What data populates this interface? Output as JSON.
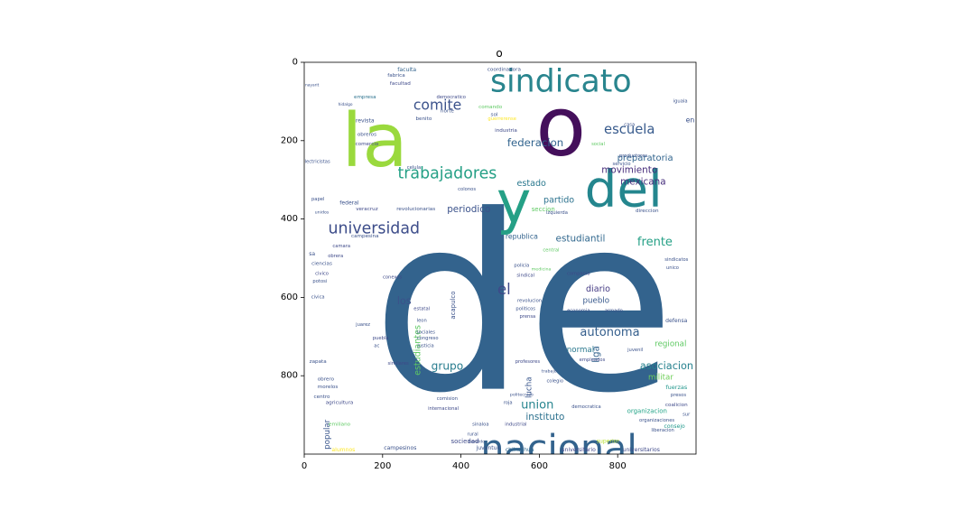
{
  "chart_data": {
    "type": "wordcloud",
    "title": "o",
    "xlabel": "",
    "ylabel": "",
    "xlim": [
      0,
      1000
    ],
    "ylim": [
      1000,
      0
    ],
    "x_ticks": [
      0,
      200,
      400,
      600,
      800
    ],
    "y_ticks": [
      0,
      200,
      400,
      600,
      800
    ],
    "grid": false,
    "words": [
      {
        "text": "de",
        "x": 560,
        "y": 620,
        "size": 620,
        "color": "#33638d"
      },
      {
        "text": "la",
        "x": 180,
        "y": 200,
        "size": 190,
        "color": "#9ad93d"
      },
      {
        "text": "o",
        "x": 655,
        "y": 165,
        "size": 210,
        "color": "#440f5b"
      },
      {
        "text": "sindicato",
        "x": 655,
        "y": 50,
        "size": 80,
        "color": "#29858e"
      },
      {
        "text": "del",
        "x": 815,
        "y": 325,
        "size": 130,
        "color": "#24868e"
      },
      {
        "text": "y",
        "x": 535,
        "y": 360,
        "size": 150,
        "color": "#25a086"
      },
      {
        "text": "nacional",
        "x": 650,
        "y": 985,
        "size": 95,
        "color": "#33638d"
      },
      {
        "text": "trabajadores",
        "x": 365,
        "y": 285,
        "size": 40,
        "color": "#25a086"
      },
      {
        "text": "universidad",
        "x": 178,
        "y": 425,
        "size": 40,
        "color": "#3d4d8a"
      },
      {
        "text": "comite",
        "x": 340,
        "y": 110,
        "size": 36,
        "color": "#3b528b"
      },
      {
        "text": "escuela",
        "x": 830,
        "y": 172,
        "size": 34,
        "color": "#375a8c"
      },
      {
        "text": "federacion",
        "x": 590,
        "y": 205,
        "size": 27,
        "color": "#32648e"
      },
      {
        "text": "preparatoria",
        "x": 870,
        "y": 245,
        "size": 23,
        "color": "#32658e"
      },
      {
        "text": "movimiento",
        "x": 830,
        "y": 275,
        "size": 24,
        "color": "#472d7b"
      },
      {
        "text": "mexicana",
        "x": 865,
        "y": 305,
        "size": 24,
        "color": "#472f7d"
      },
      {
        "text": "estado",
        "x": 580,
        "y": 310,
        "size": 22,
        "color": "#2a788e"
      },
      {
        "text": "partido",
        "x": 650,
        "y": 352,
        "size": 22,
        "color": "#2c728e"
      },
      {
        "text": "periodico",
        "x": 420,
        "y": 375,
        "size": 24,
        "color": "#3b528b"
      },
      {
        "text": "estudiantil",
        "x": 705,
        "y": 450,
        "size": 24,
        "color": "#31688e"
      },
      {
        "text": "frente",
        "x": 895,
        "y": 460,
        "size": 30,
        "color": "#25a086"
      },
      {
        "text": "el",
        "x": 510,
        "y": 580,
        "size": 38,
        "color": "#3e4989"
      },
      {
        "text": "autonoma",
        "x": 780,
        "y": 690,
        "size": 30,
        "color": "#355f8d"
      },
      {
        "text": "asociacion",
        "x": 925,
        "y": 775,
        "size": 26,
        "color": "#26818e"
      },
      {
        "text": "union",
        "x": 595,
        "y": 875,
        "size": 30,
        "color": "#25848e"
      },
      {
        "text": "grupo",
        "x": 365,
        "y": 775,
        "size": 28,
        "color": "#287c8e"
      },
      {
        "text": "instituto",
        "x": 615,
        "y": 905,
        "size": 24,
        "color": "#2c718e"
      },
      {
        "text": "los",
        "x": 255,
        "y": 610,
        "size": 26,
        "color": "#3b528b"
      },
      {
        "text": "diario",
        "x": 750,
        "y": 580,
        "size": 22,
        "color": "#443a83"
      },
      {
        "text": "pueblo",
        "x": 745,
        "y": 610,
        "size": 20,
        "color": "#38598c"
      },
      {
        "text": "normal",
        "x": 705,
        "y": 735,
        "size": 20,
        "color": "#2a788e"
      },
      {
        "text": "regional",
        "x": 935,
        "y": 720,
        "size": 20,
        "color": "#5ec962"
      },
      {
        "text": "militar",
        "x": 910,
        "y": 805,
        "size": 20,
        "color": "#6ece58"
      },
      {
        "text": "fuerzas",
        "x": 950,
        "y": 830,
        "size": 15,
        "color": "#1f968b"
      },
      {
        "text": "republica",
        "x": 555,
        "y": 445,
        "size": 18,
        "color": "#33638d"
      },
      {
        "text": "seccion",
        "x": 610,
        "y": 375,
        "size": 16,
        "color": "#5ec962"
      },
      {
        "text": "en",
        "x": 985,
        "y": 148,
        "size": 18,
        "color": "#3b528b"
      },
      {
        "text": "sociedad",
        "x": 410,
        "y": 968,
        "size": 16,
        "color": "#3e4989"
      },
      {
        "text": "organizacion",
        "x": 875,
        "y": 890,
        "size": 16,
        "color": "#20a386"
      },
      {
        "text": "consejo",
        "x": 945,
        "y": 930,
        "size": 14,
        "color": "#1f988b"
      },
      {
        "text": "juventud",
        "x": 470,
        "y": 985,
        "size": 14,
        "color": "#3b528b"
      },
      {
        "text": "chihuahua",
        "x": 550,
        "y": 990,
        "size": 14,
        "color": "#31688e"
      },
      {
        "text": "universitario",
        "x": 700,
        "y": 990,
        "size": 14,
        "color": "#404688"
      },
      {
        "text": "universitarios",
        "x": 860,
        "y": 990,
        "size": 14,
        "color": "#3e4989"
      },
      {
        "text": "campesinos",
        "x": 245,
        "y": 985,
        "size": 14,
        "color": "#3b528b"
      },
      {
        "text": "alumnos",
        "x": 100,
        "y": 990,
        "size": 14,
        "color": "#fde725"
      },
      {
        "text": "superior",
        "x": 775,
        "y": 968,
        "size": 14,
        "color": "#b5de2b"
      },
      {
        "text": "estudiantes",
        "x": 290,
        "y": 735,
        "size": 22,
        "color": "#5ec962",
        "rotate": -90
      },
      {
        "text": "popular",
        "x": 60,
        "y": 950,
        "size": 20,
        "color": "#39568c",
        "rotate": -90
      },
      {
        "text": "liga",
        "x": 745,
        "y": 745,
        "size": 24,
        "color": "#33638d",
        "rotate": -90
      },
      {
        "text": "lucha",
        "x": 575,
        "y": 830,
        "size": 20,
        "color": "#39568c",
        "rotate": -90
      },
      {
        "text": "acapulco",
        "x": 380,
        "y": 620,
        "size": 16,
        "color": "#3b528b",
        "rotate": -90
      },
      {
        "text": "faculta",
        "x": 262,
        "y": 20,
        "size": 14,
        "color": "#33638d"
      },
      {
        "text": "coordinadora",
        "x": 510,
        "y": 20,
        "size": 13,
        "color": "#3b528b"
      },
      {
        "text": "fabrica",
        "x": 235,
        "y": 35,
        "size": 13,
        "color": "#3b528b"
      },
      {
        "text": "facultad",
        "x": 245,
        "y": 55,
        "size": 13,
        "color": "#3e4989"
      },
      {
        "text": "empresa",
        "x": 155,
        "y": 90,
        "size": 13,
        "color": "#2c728e"
      },
      {
        "text": "democratico",
        "x": 375,
        "y": 90,
        "size": 12,
        "color": "#3e4989"
      },
      {
        "text": "revista",
        "x": 155,
        "y": 150,
        "size": 14,
        "color": "#3b528b"
      },
      {
        "text": "benito",
        "x": 305,
        "y": 145,
        "size": 13,
        "color": "#3b528b"
      },
      {
        "text": "obreros",
        "x": 160,
        "y": 185,
        "size": 13,
        "color": "#3b528b"
      },
      {
        "text": "comercio",
        "x": 160,
        "y": 210,
        "size": 13,
        "color": "#3e4989"
      },
      {
        "text": "electricistas",
        "x": 30,
        "y": 255,
        "size": 12,
        "color": "#3b528b"
      },
      {
        "text": "federal",
        "x": 115,
        "y": 360,
        "size": 14,
        "color": "#3b528b"
      },
      {
        "text": "papel",
        "x": 35,
        "y": 350,
        "size": 12,
        "color": "#3b528b"
      },
      {
        "text": "unidos",
        "x": 45,
        "y": 385,
        "size": 11,
        "color": "#3b528b"
      },
      {
        "text": "veracruz",
        "x": 160,
        "y": 375,
        "size": 13,
        "color": "#3e4989"
      },
      {
        "text": "revolucionarias",
        "x": 285,
        "y": 375,
        "size": 13,
        "color": "#3b528b"
      },
      {
        "text": "campesina",
        "x": 155,
        "y": 445,
        "size": 13,
        "color": "#3b528b"
      },
      {
        "text": "camara",
        "x": 95,
        "y": 470,
        "size": 12,
        "color": "#3e4989"
      },
      {
        "text": "sa",
        "x": 20,
        "y": 490,
        "size": 14,
        "color": "#3b528b"
      },
      {
        "text": "obrera",
        "x": 80,
        "y": 495,
        "size": 12,
        "color": "#3e4989"
      },
      {
        "text": "ciencias",
        "x": 45,
        "y": 515,
        "size": 13,
        "color": "#3b528b"
      },
      {
        "text": "civico",
        "x": 45,
        "y": 540,
        "size": 12,
        "color": "#3e4989"
      },
      {
        "text": "potosi",
        "x": 40,
        "y": 560,
        "size": 12,
        "color": "#3b528b"
      },
      {
        "text": "civica",
        "x": 35,
        "y": 600,
        "size": 12,
        "color": "#3b528b"
      },
      {
        "text": "conexos",
        "x": 225,
        "y": 550,
        "size": 12,
        "color": "#3e4989"
      },
      {
        "text": "juarez",
        "x": 150,
        "y": 670,
        "size": 12,
        "color": "#3b528b"
      },
      {
        "text": "estatal",
        "x": 300,
        "y": 630,
        "size": 12,
        "color": "#3e4989"
      },
      {
        "text": "leon",
        "x": 300,
        "y": 660,
        "size": 12,
        "color": "#3b528b"
      },
      {
        "text": "sociales",
        "x": 310,
        "y": 690,
        "size": 12,
        "color": "#3b528b"
      },
      {
        "text": "puebla",
        "x": 195,
        "y": 705,
        "size": 12,
        "color": "#3e4989"
      },
      {
        "text": "congreso",
        "x": 315,
        "y": 705,
        "size": 12,
        "color": "#3b528b"
      },
      {
        "text": "ac",
        "x": 185,
        "y": 725,
        "size": 12,
        "color": "#3b528b"
      },
      {
        "text": "justicia",
        "x": 310,
        "y": 725,
        "size": 12,
        "color": "#3b528b"
      },
      {
        "text": "similares",
        "x": 240,
        "y": 770,
        "size": 12,
        "color": "#3e4989"
      },
      {
        "text": "zapata",
        "x": 35,
        "y": 765,
        "size": 13,
        "color": "#3b528b"
      },
      {
        "text": "obrero",
        "x": 55,
        "y": 810,
        "size": 13,
        "color": "#3b528b"
      },
      {
        "text": "morelos",
        "x": 60,
        "y": 830,
        "size": 13,
        "color": "#3b528b"
      },
      {
        "text": "centro",
        "x": 45,
        "y": 855,
        "size": 13,
        "color": "#3b528b"
      },
      {
        "text": "agricultura",
        "x": 90,
        "y": 870,
        "size": 13,
        "color": "#3e4989"
      },
      {
        "text": "emiliano",
        "x": 90,
        "y": 925,
        "size": 13,
        "color": "#5ec962"
      },
      {
        "text": "internacional",
        "x": 355,
        "y": 885,
        "size": 12,
        "color": "#3e4989"
      },
      {
        "text": "comision",
        "x": 365,
        "y": 860,
        "size": 12,
        "color": "#3b528b"
      },
      {
        "text": "sinaloa",
        "x": 450,
        "y": 925,
        "size": 12,
        "color": "#3b528b"
      },
      {
        "text": "industrial",
        "x": 540,
        "y": 925,
        "size": 12,
        "color": "#3e4989"
      },
      {
        "text": "rural",
        "x": 430,
        "y": 950,
        "size": 12,
        "color": "#3b528b"
      },
      {
        "text": "heraldo",
        "x": 440,
        "y": 970,
        "size": 11,
        "color": "#3b528b"
      },
      {
        "text": "colegio",
        "x": 640,
        "y": 815,
        "size": 12,
        "color": "#3b528b"
      },
      {
        "text": "profesores",
        "x": 570,
        "y": 765,
        "size": 12,
        "color": "#3e4989"
      },
      {
        "text": "trabajo",
        "x": 625,
        "y": 790,
        "size": 11,
        "color": "#3b528b"
      },
      {
        "text": "roja",
        "x": 520,
        "y": 870,
        "size": 12,
        "color": "#3b528b"
      },
      {
        "text": "politecnico",
        "x": 555,
        "y": 850,
        "size": 11,
        "color": "#3b528b"
      },
      {
        "text": "democratica",
        "x": 720,
        "y": 880,
        "size": 12,
        "color": "#3b528b"
      },
      {
        "text": "empleados",
        "x": 735,
        "y": 760,
        "size": 12,
        "color": "#3e4989"
      },
      {
        "text": "juvenil",
        "x": 845,
        "y": 735,
        "size": 12,
        "color": "#3b528b"
      },
      {
        "text": "defensa",
        "x": 950,
        "y": 660,
        "size": 14,
        "color": "#3b528b"
      },
      {
        "text": "presos",
        "x": 955,
        "y": 850,
        "size": 12,
        "color": "#3b528b"
      },
      {
        "text": "coalicion",
        "x": 950,
        "y": 875,
        "size": 13,
        "color": "#3e4989"
      },
      {
        "text": "sur",
        "x": 975,
        "y": 900,
        "size": 12,
        "color": "#3b528b"
      },
      {
        "text": "organizaciones",
        "x": 900,
        "y": 915,
        "size": 12,
        "color": "#3b528b"
      },
      {
        "text": "liberacion",
        "x": 915,
        "y": 940,
        "size": 12,
        "color": "#3b528b"
      },
      {
        "text": "unico",
        "x": 940,
        "y": 525,
        "size": 12,
        "color": "#3b528b"
      },
      {
        "text": "sindicatos",
        "x": 950,
        "y": 505,
        "size": 12,
        "color": "#3b528b"
      },
      {
        "text": "compania",
        "x": 700,
        "y": 540,
        "size": 12,
        "color": "#3e4989"
      },
      {
        "text": "economia",
        "x": 700,
        "y": 635,
        "size": 12,
        "color": "#3b528b"
      },
      {
        "text": "armado",
        "x": 790,
        "y": 635,
        "size": 12,
        "color": "#3b528b"
      },
      {
        "text": "revolucion",
        "x": 575,
        "y": 610,
        "size": 12,
        "color": "#3b528b"
      },
      {
        "text": "politicos",
        "x": 565,
        "y": 630,
        "size": 12,
        "color": "#3b528b"
      },
      {
        "text": "prensa",
        "x": 570,
        "y": 650,
        "size": 12,
        "color": "#3e4989"
      },
      {
        "text": "sindical",
        "x": 565,
        "y": 545,
        "size": 12,
        "color": "#3e4989"
      },
      {
        "text": "policia",
        "x": 555,
        "y": 520,
        "size": 12,
        "color": "#3b528b"
      },
      {
        "text": "medicina",
        "x": 605,
        "y": 530,
        "size": 11,
        "color": "#5ec962"
      },
      {
        "text": "central",
        "x": 630,
        "y": 480,
        "size": 12,
        "color": "#5ec962"
      },
      {
        "text": "direccion",
        "x": 875,
        "y": 380,
        "size": 13,
        "color": "#3b528b"
      },
      {
        "text": "izquierda",
        "x": 645,
        "y": 385,
        "size": 12,
        "color": "#3b528b"
      },
      {
        "text": "colonos",
        "x": 415,
        "y": 325,
        "size": 12,
        "color": "#3b528b"
      },
      {
        "text": "celula",
        "x": 280,
        "y": 270,
        "size": 12,
        "color": "#3b528b"
      },
      {
        "text": "servicio",
        "x": 810,
        "y": 260,
        "size": 12,
        "color": "#3b528b"
      },
      {
        "text": "productores",
        "x": 840,
        "y": 240,
        "size": 12,
        "color": "#3b528b"
      },
      {
        "text": "industria",
        "x": 515,
        "y": 175,
        "size": 13,
        "color": "#3e4989"
      },
      {
        "text": "norte",
        "x": 365,
        "y": 125,
        "size": 13,
        "color": "#3b528b"
      },
      {
        "text": "comando",
        "x": 475,
        "y": 115,
        "size": 13,
        "color": "#5ec962"
      },
      {
        "text": "sol",
        "x": 485,
        "y": 135,
        "size": 13,
        "color": "#3b528b"
      },
      {
        "text": "guerrerense",
        "x": 505,
        "y": 145,
        "size": 12,
        "color": "#fde725"
      },
      {
        "text": "iguala",
        "x": 960,
        "y": 100,
        "size": 12,
        "color": "#3b528b"
      },
      {
        "text": "casa",
        "x": 830,
        "y": 160,
        "size": 12,
        "color": "#3b528b"
      },
      {
        "text": "social",
        "x": 750,
        "y": 210,
        "size": 12,
        "color": "#5ec962"
      },
      {
        "text": "nayarit",
        "x": 20,
        "y": 60,
        "size": 10,
        "color": "#3b528b"
      },
      {
        "text": "hidalgo",
        "x": 105,
        "y": 110,
        "size": 10,
        "color": "#3b528b"
      }
    ]
  }
}
